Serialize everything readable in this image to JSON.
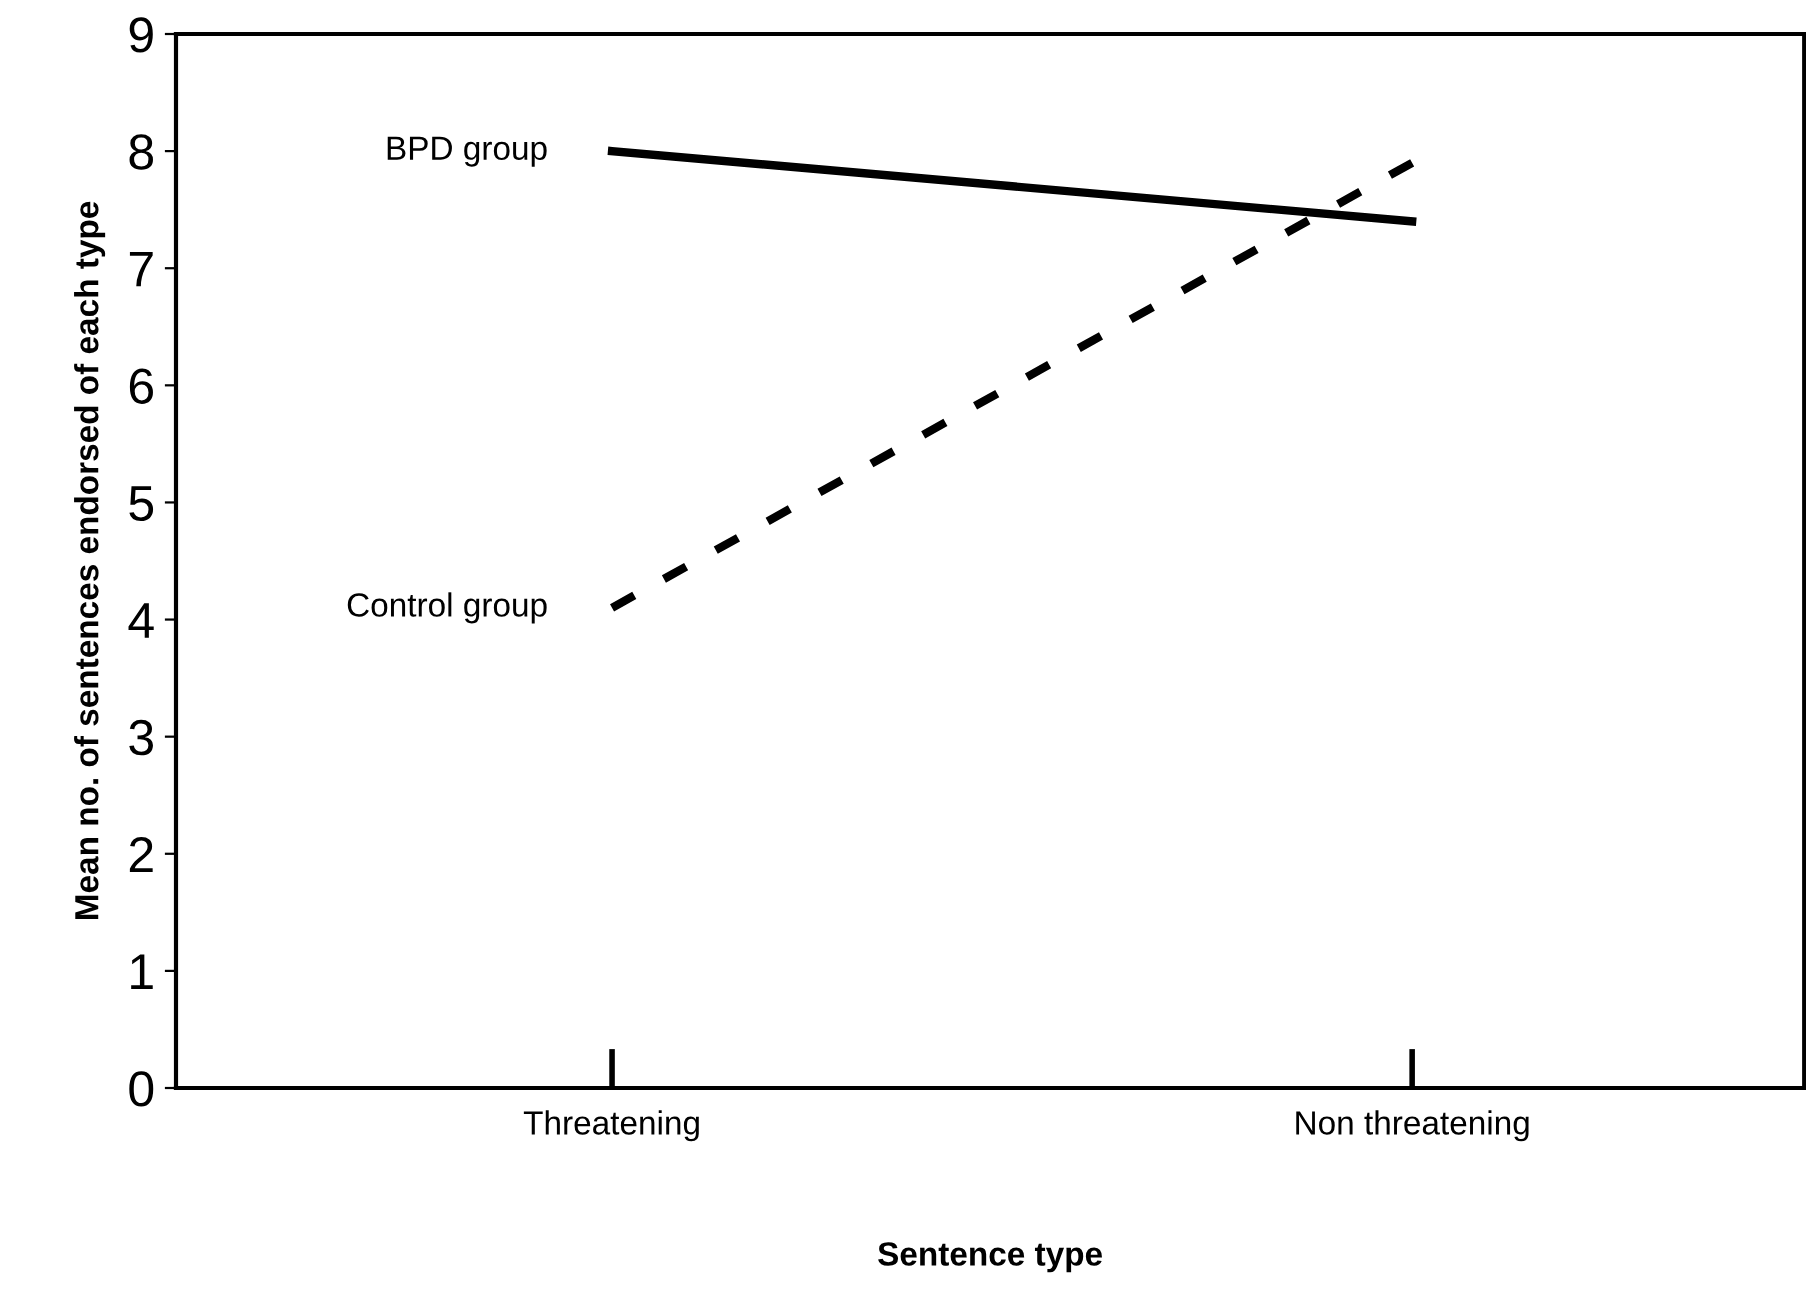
{
  "chart_data": {
    "type": "line",
    "xlabel": "Sentence type",
    "ylabel": "Mean no. of sentences endorsed of each type",
    "categories": [
      "Threatening",
      "Non threatening"
    ],
    "series": [
      {
        "name": "BPD group",
        "color": "#000000",
        "line_style": "solid",
        "values": [
          8.0,
          7.4
        ]
      },
      {
        "name": "Control group",
        "color": "#000000",
        "line_style": "dashed",
        "values": [
          4.1,
          7.9
        ]
      }
    ],
    "ylim": [
      0,
      9
    ],
    "yticks": [
      0,
      1,
      2,
      3,
      4,
      5,
      6,
      7,
      8,
      9
    ],
    "grid": false,
    "legend": false,
    "marker": "none"
  }
}
